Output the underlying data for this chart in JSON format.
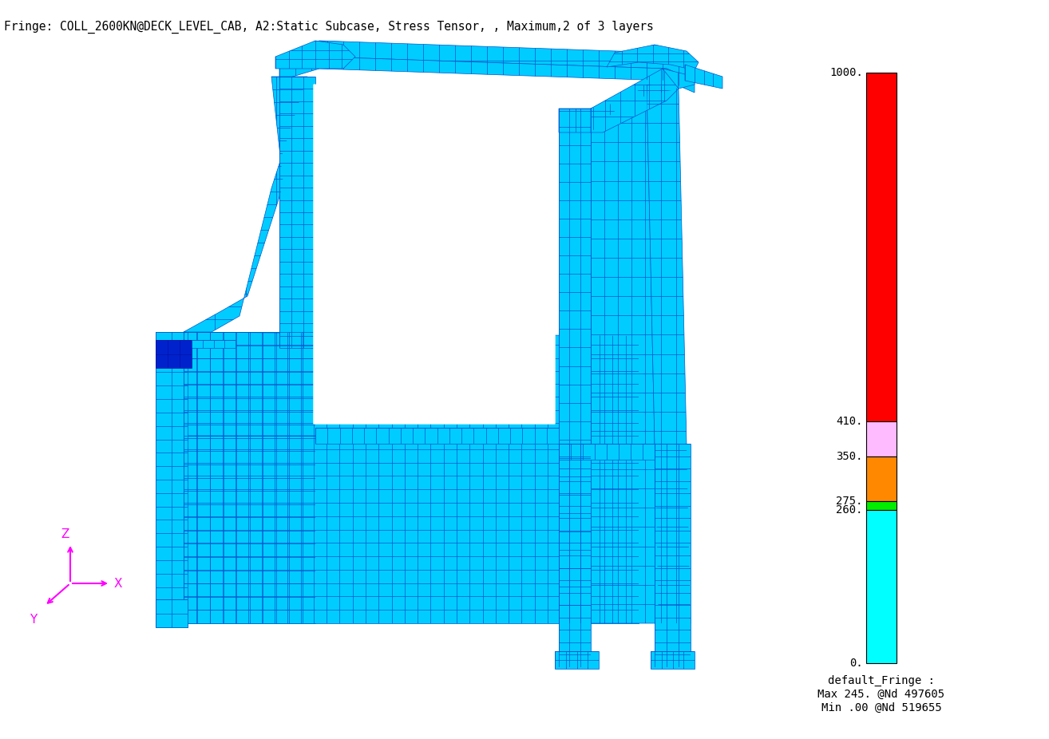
{
  "title": "Fringe: COLL_2600KN@DECK_LEVEL_CAB, A2:Static Subcase, Stress Tensor, , Maximum,2 of 3 layers",
  "background_color": "#ffffff",
  "mesh_color": "#00ccff",
  "mesh_line_color": "#0055cc",
  "dark_blue": "#0033aa",
  "axis_color": "#ff00ff",
  "legend_text": [
    "default_Fringe :",
    "Max 245. @Nd 497605",
    "Min .00 @Nd 519655"
  ],
  "colorbar_segments": [
    [
      410,
      1000,
      "#ff0000"
    ],
    [
      350,
      410,
      "#ffbbff"
    ],
    [
      275,
      350,
      "#ff8800"
    ],
    [
      260,
      275,
      "#00ee00"
    ],
    [
      0,
      260,
      "#00ffff"
    ]
  ],
  "tick_vals": [
    1000,
    410,
    350,
    275,
    260,
    0
  ]
}
